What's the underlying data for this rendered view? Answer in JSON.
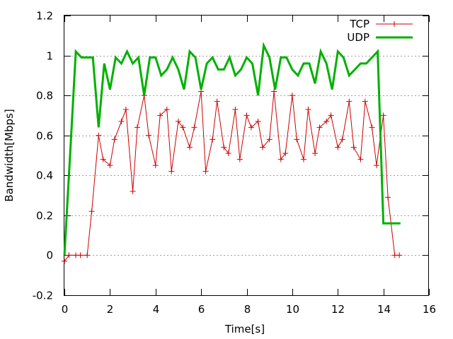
{
  "chart_data": {
    "type": "line",
    "title": "",
    "xlabel": "Time[s]",
    "ylabel": "Bandwidth[Mbps]",
    "xlim": [
      0,
      16
    ],
    "ylim": [
      -0.2,
      1.2
    ],
    "xticks": [
      "0",
      "2",
      "4",
      "6",
      "8",
      "10",
      "12",
      "14",
      "16"
    ],
    "yticks": [
      "-0.2",
      "0",
      "0.2",
      "0.4",
      "0.6",
      "0.8",
      "1",
      "1.2"
    ],
    "grid": "horizontal dotted",
    "legend": "top-right",
    "series": [
      {
        "name": "TCP",
        "color": "#cc0000",
        "marker": "plus",
        "x": [
          0,
          0.2,
          0.5,
          0.7,
          1.0,
          1.2,
          1.5,
          1.7,
          2.0,
          2.2,
          2.5,
          2.7,
          3.0,
          3.2,
          3.5,
          3.7,
          4.0,
          4.2,
          4.5,
          4.7,
          5.0,
          5.2,
          5.5,
          5.7,
          6.0,
          6.2,
          6.5,
          6.7,
          7.0,
          7.2,
          7.5,
          7.7,
          8.0,
          8.2,
          8.5,
          8.7,
          9.0,
          9.2,
          9.5,
          9.7,
          10.0,
          10.2,
          10.5,
          10.7,
          11.0,
          11.2,
          11.5,
          11.7,
          12.0,
          12.2,
          12.5,
          12.7,
          13.0,
          13.2,
          13.5,
          13.7,
          14.0,
          14.2,
          14.5,
          14.7
        ],
        "values": [
          -0.03,
          0.0,
          0.0,
          0.0,
          0.0,
          0.22,
          0.6,
          0.48,
          0.45,
          0.58,
          0.67,
          0.73,
          0.32,
          0.64,
          0.8,
          0.6,
          0.45,
          0.7,
          0.73,
          0.42,
          0.67,
          0.64,
          0.54,
          0.64,
          0.82,
          0.42,
          0.58,
          0.77,
          0.54,
          0.51,
          0.73,
          0.48,
          0.7,
          0.64,
          0.67,
          0.54,
          0.58,
          0.82,
          0.48,
          0.51,
          0.8,
          0.58,
          0.48,
          0.73,
          0.51,
          0.64,
          0.67,
          0.7,
          0.54,
          0.58,
          0.77,
          0.54,
          0.48,
          0.77,
          0.64,
          0.45,
          0.7,
          0.29,
          0.0,
          0.0
        ]
      },
      {
        "name": "UDP",
        "color": "#00b000",
        "marker": "none",
        "x": [
          0,
          0.25,
          0.5,
          0.75,
          1.0,
          1.25,
          1.5,
          1.75,
          2.0,
          2.25,
          2.5,
          2.75,
          3.0,
          3.25,
          3.5,
          3.75,
          4.0,
          4.25,
          4.5,
          4.75,
          5.0,
          5.25,
          5.5,
          5.75,
          6.0,
          6.25,
          6.5,
          6.75,
          7.0,
          7.25,
          7.5,
          7.75,
          8.0,
          8.25,
          8.5,
          8.75,
          9.0,
          9.25,
          9.5,
          9.75,
          10.0,
          10.25,
          10.5,
          10.75,
          11.0,
          11.25,
          11.5,
          11.75,
          12.0,
          12.25,
          12.5,
          12.75,
          13.0,
          13.25,
          13.5,
          13.75,
          14.0,
          14.25,
          14.5,
          14.75
        ],
        "values": [
          0.0,
          0.5,
          1.02,
          0.99,
          0.99,
          0.99,
          0.64,
          0.96,
          0.83,
          0.99,
          0.96,
          1.02,
          0.96,
          0.99,
          0.8,
          0.99,
          0.99,
          0.9,
          0.93,
          0.99,
          0.93,
          0.83,
          1.02,
          0.99,
          0.83,
          0.96,
          0.99,
          0.93,
          0.93,
          0.99,
          0.9,
          0.93,
          0.99,
          0.96,
          0.8,
          1.05,
          0.99,
          0.83,
          0.99,
          0.99,
          0.93,
          0.9,
          0.96,
          0.96,
          0.86,
          1.02,
          0.96,
          0.83,
          1.02,
          0.99,
          0.9,
          0.93,
          0.96,
          0.96,
          0.99,
          1.02,
          0.16,
          0.16,
          0.16,
          0.16
        ]
      }
    ]
  }
}
